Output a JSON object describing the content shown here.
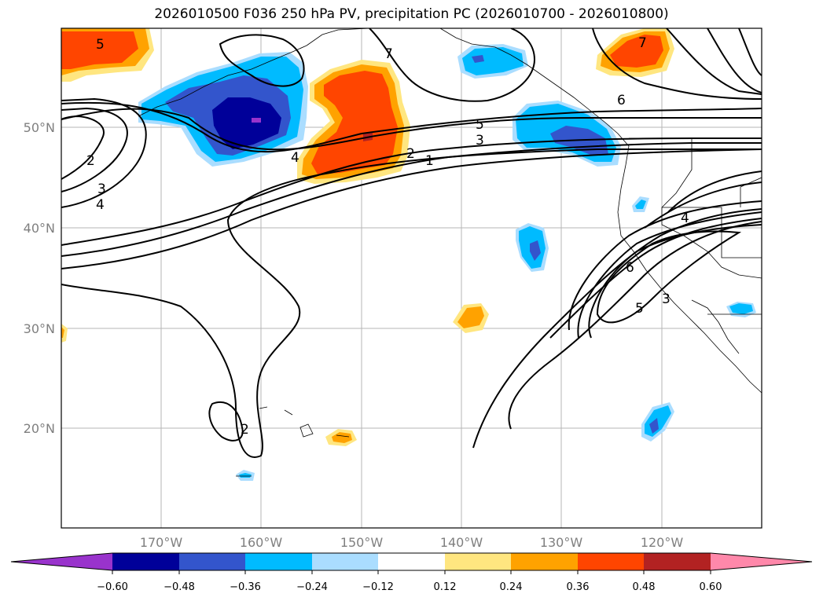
{
  "title": "2026010500 F036 250 hPa PV, precipitation PC (2026010700 - 2026010800)",
  "map": {
    "lat_labels": [
      "50°N",
      "40°N",
      "30°N",
      "20°N"
    ],
    "lon_labels": [
      "170°W",
      "160°W",
      "150°W",
      "140°W",
      "130°W",
      "120°W"
    ]
  },
  "contour_labels": [
    "5",
    "7",
    "7",
    "6",
    "5",
    "3",
    "2",
    "1",
    "4",
    "2",
    "3",
    "4",
    "4",
    "6",
    "5",
    "3",
    "2"
  ],
  "colorbar": {
    "ticks": [
      "−0.60",
      "−0.48",
      "−0.36",
      "−0.24",
      "−0.12",
      "0.12",
      "0.24",
      "0.36",
      "0.48",
      "0.60"
    ],
    "colors": [
      "#9933cc",
      "#000099",
      "#3355cc",
      "#00bbff",
      "#aaddff",
      "#ffffff",
      "#ffe680",
      "#ffa200",
      "#ff4500",
      "#b22222",
      "#ff88aa"
    ]
  }
}
